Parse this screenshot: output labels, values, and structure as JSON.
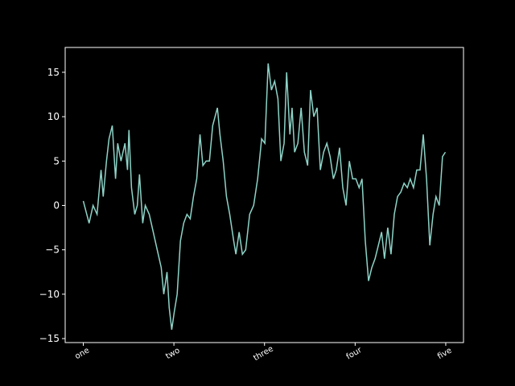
{
  "chart_data": {
    "type": "line",
    "x": [
      0,
      16,
      27,
      38,
      49,
      55,
      64,
      71,
      80,
      89,
      95,
      104,
      115,
      122,
      126,
      133,
      142,
      149,
      155,
      164,
      171,
      182,
      193,
      204,
      215,
      222,
      231,
      237,
      244,
      251,
      259,
      268,
      277,
      286,
      295,
      304,
      313,
      322,
      330,
      339,
      348,
      357,
      370,
      377,
      386,
      395,
      404,
      415,
      421,
      430,
      439,
      448,
      459,
      470,
      481,
      492,
      501,
      510,
      519,
      528,
      537,
      545,
      554,
      561,
      570,
      576,
      583,
      592,
      601,
      610,
      619,
      627,
      636,
      645,
      654,
      663,
      672,
      681,
      690,
      698,
      707,
      716,
      725,
      734,
      743,
      752,
      761,
      769,
      778,
      787,
      796,
      805,
      814,
      823,
      831,
      840,
      849,
      858,
      867,
      876,
      885,
      894,
      902,
      911,
      920,
      929,
      938,
      947,
      956,
      965,
      973,
      982,
      991,
      999
    ],
    "series": [
      {
        "color": "#8dd3c7",
        "values": [
          0.5,
          -2,
          0,
          -1,
          4,
          1,
          5,
          7.5,
          9,
          3,
          7,
          5,
          7,
          4,
          8.5,
          2,
          -1,
          0,
          3.5,
          -2,
          0,
          -1,
          -3,
          -5,
          -7,
          -10,
          -7.5,
          -11.5,
          -14,
          -12,
          -10,
          -4,
          -2,
          -1,
          -1.5,
          1,
          3,
          8,
          4.5,
          5,
          5,
          9,
          11,
          8,
          5,
          1,
          -1,
          -4,
          -5.5,
          -3,
          -5.5,
          -5,
          -1,
          0,
          3,
          7.5,
          7,
          16,
          13,
          14,
          12,
          5,
          7,
          15,
          8,
          11,
          6,
          7,
          11,
          6,
          4.5,
          13,
          10,
          11,
          4,
          6,
          7,
          5.5,
          3,
          4,
          6.5,
          2,
          0,
          5,
          3,
          3,
          2,
          3,
          -4,
          -8.5,
          -7,
          -6,
          -4.5,
          -3,
          -6,
          -2.5,
          -5.5,
          -1,
          1,
          1.5,
          2.5,
          2,
          3,
          2,
          4,
          4,
          8,
          3,
          -4.5,
          -1,
          1,
          0,
          5.5,
          6
        ]
      }
    ],
    "xlim": [
      -49.95,
      1048.95
    ],
    "ylim": [
      -15.45,
      17.8
    ],
    "xticks": [
      {
        "value": 0,
        "label": "one"
      },
      {
        "value": 250,
        "label": "two"
      },
      {
        "value": 500,
        "label": "three"
      },
      {
        "value": 750,
        "label": "four"
      },
      {
        "value": 1000,
        "label": "five"
      }
    ],
    "yticks": [
      {
        "value": -15,
        "label": "−15"
      },
      {
        "value": -10,
        "label": "−10"
      },
      {
        "value": -5,
        "label": "−5"
      },
      0,
      5,
      10,
      15
    ]
  }
}
